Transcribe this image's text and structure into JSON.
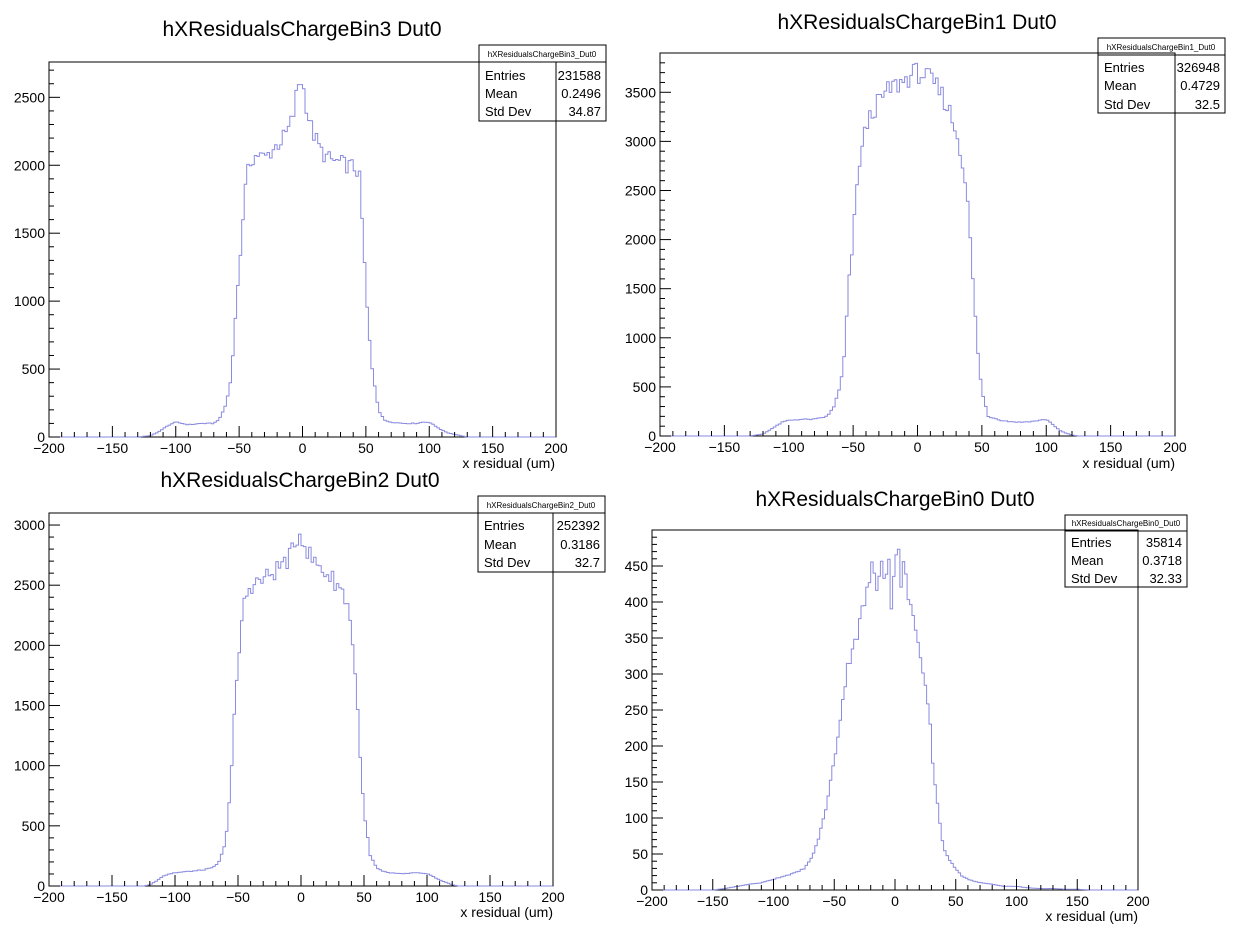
{
  "colors": {
    "histogram_line": "#8a8ae0",
    "axis": "#000000",
    "background": "#ffffff"
  },
  "chart_data": [
    {
      "type": "histogram",
      "title": "hXResidualsChargeBin3  Dut0",
      "xlabel": "x residual (um)",
      "ylabel": "",
      "xlim": [
        -200,
        200
      ],
      "ylim": [
        0,
        2760
      ],
      "x_ticks": [
        "−200",
        "−150",
        "−100",
        "−50",
        "0",
        "50",
        "100",
        "150",
        "200"
      ],
      "y_ticks": [
        "0",
        "500",
        "1000",
        "1500",
        "2000",
        "2500"
      ],
      "stats": {
        "name": "hXResidualsChargeBin3_Dut0",
        "rows": [
          {
            "label": "Entries",
            "value": "231588"
          },
          {
            "label": "Mean",
            "value": "0.2496"
          },
          {
            "label": "Std Dev",
            "value": "34.87"
          }
        ]
      },
      "x": [
        -130,
        -120,
        -115,
        -110,
        -105,
        -100,
        -95,
        -90,
        -80,
        -70,
        -65,
        -60,
        -57,
        -55,
        -53,
        -50,
        -48,
        -46,
        -44,
        -42,
        -40,
        -35,
        -30,
        -25,
        -20,
        -15,
        -10,
        -7,
        -5,
        -3,
        -1,
        0,
        2,
        4,
        6,
        10,
        15,
        20,
        25,
        30,
        35,
        40,
        43,
        45,
        47,
        50,
        52,
        55,
        60,
        65,
        70,
        80,
        90,
        95,
        100,
        105,
        110,
        115,
        120,
        125,
        130
      ],
      "values": [
        0,
        10,
        30,
        60,
        90,
        110,
        100,
        90,
        100,
        100,
        140,
        250,
        400,
        600,
        900,
        1200,
        1500,
        1750,
        1900,
        2000,
        2050,
        2080,
        2050,
        2100,
        2150,
        2200,
        2280,
        2380,
        2500,
        2600,
        2630,
        2600,
        2500,
        2400,
        2300,
        2200,
        2100,
        2050,
        2030,
        2020,
        2000,
        1990,
        1960,
        1900,
        1600,
        1100,
        800,
        500,
        200,
        120,
        110,
        100,
        100,
        110,
        110,
        80,
        50,
        30,
        20,
        10,
        0
      ]
    },
    {
      "type": "histogram",
      "title": "hXResidualsChargeBin1  Dut0",
      "xlabel": "x residual (um)",
      "ylabel": "",
      "xlim": [
        -200,
        200
      ],
      "ylim": [
        0,
        3900
      ],
      "x_ticks": [
        "−200",
        "−150",
        "−100",
        "−50",
        "0",
        "50",
        "100",
        "150",
        "200"
      ],
      "y_ticks": [
        "0",
        "500",
        "1000",
        "1500",
        "2000",
        "2500",
        "3000",
        "3500"
      ],
      "stats": {
        "name": "hXResidualsChargeBin1_Dut0",
        "rows": [
          {
            "label": "Entries",
            "value": "326948"
          },
          {
            "label": "Mean",
            "value": "0.4729"
          },
          {
            "label": "Std Dev",
            "value": "32.5"
          }
        ]
      },
      "x": [
        -130,
        -120,
        -115,
        -110,
        -105,
        -100,
        -90,
        -80,
        -70,
        -65,
        -60,
        -57,
        -55,
        -53,
        -50,
        -48,
        -45,
        -42,
        -40,
        -35,
        -30,
        -25,
        -20,
        -15,
        -10,
        -5,
        0,
        5,
        10,
        15,
        20,
        25,
        30,
        35,
        38,
        40,
        42,
        44,
        46,
        48,
        50,
        53,
        55,
        60,
        65,
        70,
        80,
        90,
        95,
        100,
        105,
        110,
        115,
        120,
        125
      ],
      "values": [
        0,
        20,
        60,
        100,
        140,
        160,
        170,
        170,
        200,
        300,
        500,
        800,
        1200,
        1600,
        2000,
        2400,
        2800,
        3000,
        3150,
        3300,
        3400,
        3480,
        3550,
        3580,
        3620,
        3680,
        3700,
        3680,
        3620,
        3550,
        3450,
        3300,
        3100,
        2800,
        2500,
        2200,
        1800,
        1400,
        1000,
        700,
        450,
        300,
        200,
        180,
        160,
        150,
        140,
        150,
        160,
        170,
        120,
        60,
        30,
        10,
        0
      ]
    },
    {
      "type": "histogram",
      "title": "hXResidualsChargeBin2  Dut0",
      "xlabel": "x residual (um)",
      "ylabel": "",
      "xlim": [
        -200,
        200
      ],
      "ylim": [
        0,
        3100
      ],
      "x_ticks": [
        "−200",
        "−150",
        "−100",
        "−50",
        "0",
        "50",
        "100",
        "150",
        "200"
      ],
      "y_ticks": [
        "0",
        "500",
        "1000",
        "1500",
        "2000",
        "2500",
        "3000"
      ],
      "stats": {
        "name": "hXResidualsChargeBin2_Dut0",
        "rows": [
          {
            "label": "Entries",
            "value": "252392"
          },
          {
            "label": "Mean",
            "value": "0.3186"
          },
          {
            "label": "Std Dev",
            "value": "32.7"
          }
        ]
      },
      "x": [
        -125,
        -120,
        -115,
        -110,
        -105,
        -100,
        -90,
        -80,
        -70,
        -65,
        -60,
        -57,
        -55,
        -53,
        -50,
        -48,
        -46,
        -44,
        -42,
        -40,
        -35,
        -30,
        -25,
        -20,
        -15,
        -10,
        -5,
        -3,
        0,
        3,
        5,
        10,
        15,
        20,
        25,
        30,
        35,
        38,
        40,
        42,
        44,
        46,
        48,
        50,
        53,
        55,
        60,
        65,
        70,
        80,
        90,
        100,
        105,
        110,
        115,
        120,
        125
      ],
      "values": [
        0,
        10,
        40,
        80,
        100,
        110,
        120,
        130,
        150,
        200,
        350,
        700,
        1000,
        1400,
        1800,
        2100,
        2300,
        2400,
        2450,
        2500,
        2520,
        2550,
        2580,
        2620,
        2680,
        2720,
        2800,
        2900,
        2940,
        2850,
        2780,
        2700,
        2650,
        2600,
        2550,
        2500,
        2400,
        2300,
        2150,
        1900,
        1600,
        1300,
        900,
        600,
        400,
        250,
        150,
        120,
        110,
        100,
        110,
        100,
        80,
        50,
        30,
        10,
        0
      ]
    },
    {
      "type": "histogram",
      "title": "hXResidualsChargeBin0  Dut0",
      "xlabel": "x residual (um)",
      "ylabel": "",
      "xlim": [
        -200,
        200
      ],
      "ylim": [
        0,
        500
      ],
      "x_ticks": [
        "−200",
        "−150",
        "−100",
        "−50",
        "0",
        "50",
        "100",
        "150",
        "200"
      ],
      "y_ticks": [
        "0",
        "50",
        "100",
        "150",
        "200",
        "250",
        "300",
        "350",
        "400",
        "450"
      ],
      "stats": {
        "name": "hXResidualsChargeBin0_Dut0",
        "rows": [
          {
            "label": "Entries",
            "value": "35814"
          },
          {
            "label": "Mean",
            "value": "0.3718"
          },
          {
            "label": "Std Dev",
            "value": "32.33"
          }
        ]
      },
      "x": [
        -150,
        -140,
        -130,
        -120,
        -110,
        -100,
        -90,
        -80,
        -75,
        -70,
        -65,
        -60,
        -55,
        -50,
        -45,
        -40,
        -35,
        -30,
        -28,
        -25,
        -22,
        -20,
        -18,
        -15,
        -12,
        -10,
        -8,
        -5,
        -3,
        0,
        3,
        5,
        8,
        10,
        12,
        15,
        18,
        20,
        22,
        25,
        28,
        30,
        32,
        35,
        38,
        40,
        42,
        45,
        48,
        50,
        55,
        60,
        70,
        80,
        90,
        100,
        110,
        120,
        130,
        140,
        150,
        160,
        170,
        180
      ],
      "values": [
        0,
        2,
        5,
        8,
        10,
        15,
        20,
        25,
        30,
        40,
        60,
        90,
        130,
        180,
        240,
        300,
        340,
        360,
        380,
        400,
        420,
        440,
        450,
        420,
        460,
        470,
        420,
        460,
        400,
        450,
        470,
        430,
        460,
        400,
        420,
        380,
        350,
        330,
        300,
        280,
        250,
        200,
        160,
        120,
        80,
        60,
        50,
        40,
        35,
        30,
        20,
        15,
        10,
        8,
        5,
        5,
        3,
        2,
        2,
        1,
        1,
        0,
        0,
        0
      ]
    }
  ]
}
